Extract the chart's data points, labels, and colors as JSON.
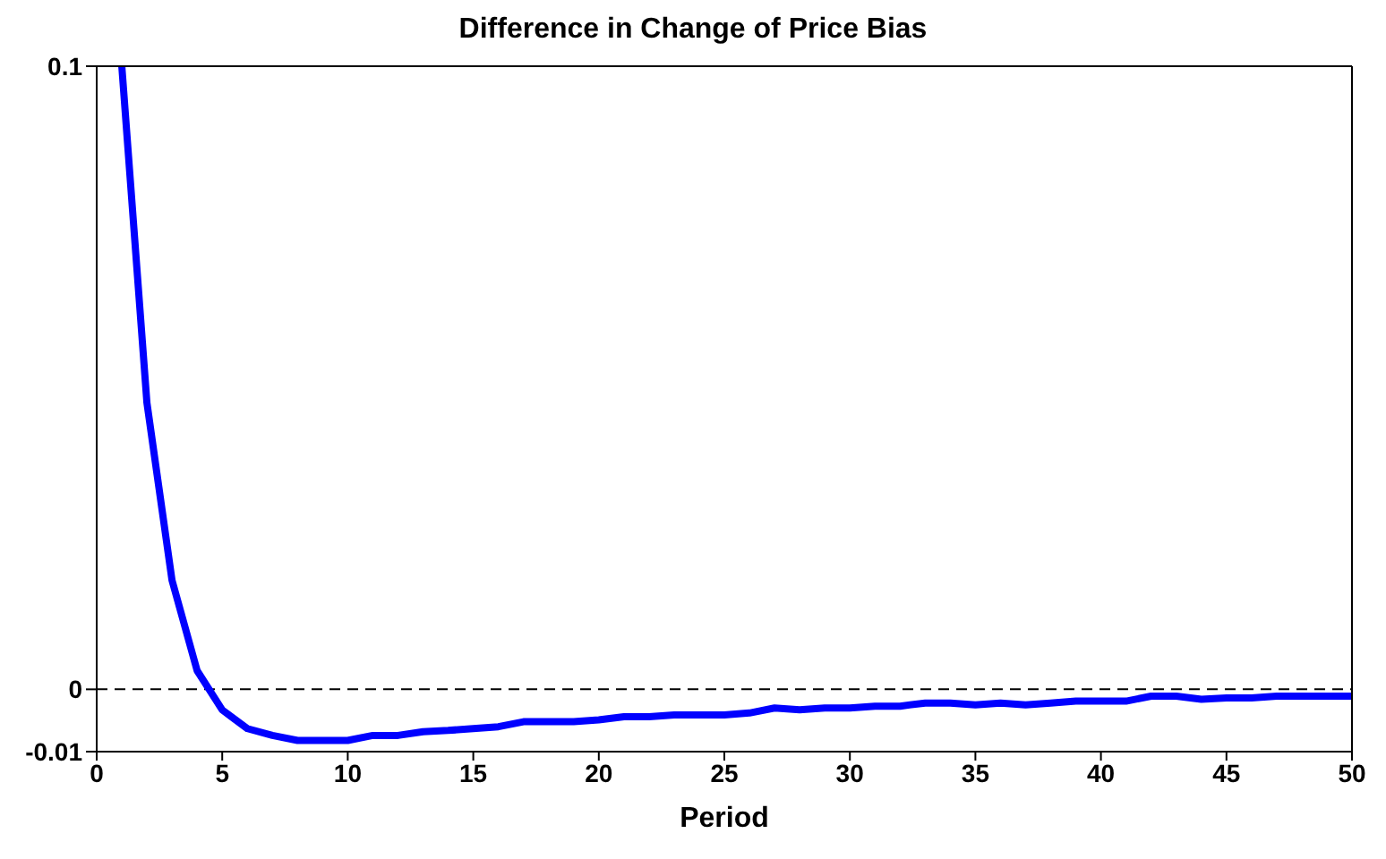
{
  "chart_data": {
    "type": "line",
    "title": "Difference in Change of Price Bias",
    "xlabel": "Period",
    "x": [
      1,
      2,
      3,
      4,
      5,
      6,
      7,
      8,
      9,
      10,
      11,
      12,
      13,
      14,
      15,
      16,
      17,
      18,
      19,
      20,
      21,
      22,
      23,
      24,
      25,
      26,
      27,
      28,
      29,
      30,
      31,
      32,
      33,
      34,
      35,
      36,
      37,
      38,
      39,
      40,
      41,
      42,
      43,
      44,
      45,
      46,
      47,
      48,
      49,
      50
    ],
    "series": [
      {
        "color": "#0000ff",
        "values": [
          0.1,
          0.046,
          0.0175,
          0.003,
          -0.0033,
          -0.0063,
          -0.0074,
          -0.0082,
          -0.0082,
          -0.0082,
          -0.0074,
          -0.0074,
          -0.0068,
          -0.0066,
          -0.0063,
          -0.006,
          -0.0052,
          -0.0052,
          -0.0052,
          -0.0049,
          -0.0044,
          -0.0044,
          -0.0041,
          -0.0041,
          -0.0041,
          -0.0038,
          -0.003,
          -0.0033,
          -0.003,
          -0.003,
          -0.0027,
          -0.0027,
          -0.0022,
          -0.0022,
          -0.0025,
          -0.0022,
          -0.0025,
          -0.0022,
          -0.0019,
          -0.0019,
          -0.0019,
          -0.0011,
          -0.0011,
          -0.0016,
          -0.0014,
          -0.0014,
          -0.0011,
          -0.0011,
          -0.0011,
          -0.0011
        ]
      }
    ],
    "xlim": [
      0,
      50
    ],
    "xticks": [
      0,
      5,
      10,
      15,
      20,
      25,
      30,
      35,
      40,
      45,
      50
    ],
    "ylim": [
      -0.01,
      0.1
    ],
    "yticks": [
      -0.01,
      0,
      0.1
    ],
    "ref_lines": [
      {
        "axis": "y",
        "value": 0,
        "color": "#000000",
        "line_style": "dashed"
      }
    ],
    "grid": false,
    "legend": false,
    "marker": "none",
    "line_style": "solid"
  }
}
